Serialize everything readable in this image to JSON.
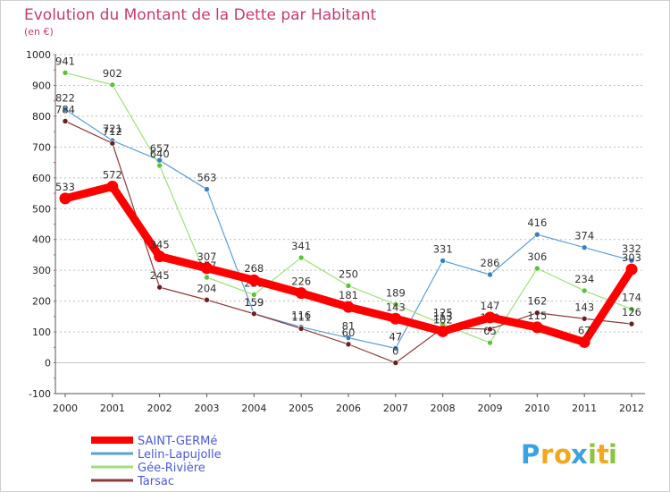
{
  "colors": {
    "background": "#ffffff",
    "plot_background": "#ffffff",
    "frame": "#cfcfcf",
    "grid": "#bdbdbd",
    "zero_line": "#c7c7c7",
    "title": "#c53b72",
    "legend_text": "#4a5ad0"
  },
  "chart_data": {
    "type": "line",
    "title": "Evolution du Montant de la Dette par Habitant",
    "subtitle": "(en €)",
    "xlabel": "",
    "ylabel": "",
    "x": [
      "2000",
      "2001",
      "2002",
      "2003",
      "2004",
      "2005",
      "2006",
      "2007",
      "2008",
      "2009",
      "2010",
      "2011",
      "2012"
    ],
    "ylim": [
      -100,
      1000
    ],
    "yticks": [
      -100,
      0,
      100,
      200,
      300,
      400,
      500,
      600,
      700,
      800,
      900,
      1000
    ],
    "grid": "horizontal dashed",
    "legend_position": "bottom-left",
    "series": [
      {
        "name": "SAINT-GERMé",
        "color": "#ff0000",
        "marker_color": "#ff0000",
        "emphasis": true,
        "values": [
          533,
          572,
          345,
          307,
          268,
          226,
          181,
          143,
          102,
          147,
          115,
          67,
          303
        ],
        "labels": [
          "533",
          "572",
          "345",
          "307",
          "268",
          "226",
          "181",
          "143",
          "102",
          "147",
          "115",
          "67",
          "303"
        ]
      },
      {
        "name": "Lelin-Lapujolle",
        "color": "#5b9fd4",
        "marker_color": "#3a7fc0",
        "emphasis": false,
        "values": [
          822,
          721,
          657,
          563,
          159,
          116,
          81,
          47,
          331,
          286,
          416,
          374,
          332
        ],
        "labels": [
          "822",
          "721",
          "657",
          "563",
          "159",
          "116",
          "81",
          "47",
          "331",
          "286",
          "416",
          "374",
          "332"
        ]
      },
      {
        "name": "Gée-Rivière",
        "color": "#9ee07a",
        "marker_color": "#5cc23a",
        "emphasis": false,
        "values": [
          941,
          902,
          640,
          277,
          221,
          341,
          250,
          189,
          125,
          65,
          306,
          234,
          174
        ],
        "labels": [
          "941",
          "902",
          "640",
          "277",
          "221",
          "341",
          "250",
          "189",
          "125",
          "65",
          "306",
          "234",
          "174"
        ]
      },
      {
        "name": "Tarsac",
        "color": "#8b3a3a",
        "marker_color": "#6b1f1f",
        "emphasis": false,
        "values": [
          784,
          712,
          245,
          204,
          159,
          111,
          60,
          0,
          113,
          109,
          162,
          143,
          126
        ],
        "labels": [
          "784",
          "712",
          "245",
          "204",
          "159",
          "111",
          "60",
          "0",
          "113",
          "109",
          "162",
          "143",
          "126"
        ]
      }
    ]
  },
  "brand": {
    "text": "Proxiti",
    "letters": [
      "P",
      "r",
      "o",
      "x",
      "i",
      "t",
      "i"
    ],
    "letter_colors": [
      "#3da3e0",
      "#f2a81d",
      "#f2a81d",
      "#3da3e0",
      "#8cc63f",
      "#f2a81d",
      "#8cc63f"
    ]
  }
}
